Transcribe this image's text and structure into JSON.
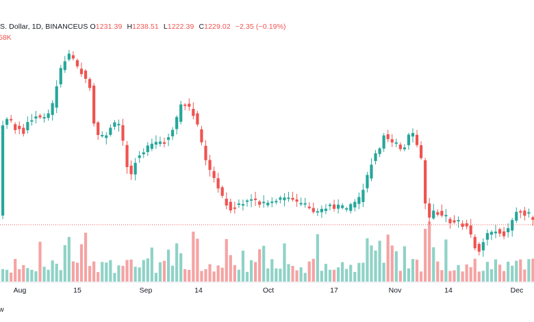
{
  "header": {
    "symbol_line": ".S. Dollar, 1D, BINANCEUS",
    "open_label": "O",
    "open": "1231.39",
    "high_label": "H",
    "high": "1238.51",
    "low_label": "L",
    "low": "1222.39",
    "close_label": "C",
    "close": "1229.02",
    "change": "−2.35 (−0.19%)",
    "volume": "58K"
  },
  "footer": {
    "text": "w"
  },
  "colors": {
    "up": "#26a69a",
    "down": "#ef5350",
    "up_vol": "#8fd2c6",
    "down_vol": "#f5a3a3",
    "price_line": "#ef5350"
  },
  "chart_data": {
    "type": "candlestick",
    "x_tick_labels": [
      "Aug",
      "15",
      "Sep",
      "14",
      "Oct",
      "17",
      "Nov",
      "14",
      "Dec"
    ],
    "price_line_visible": true,
    "grid": false
  }
}
